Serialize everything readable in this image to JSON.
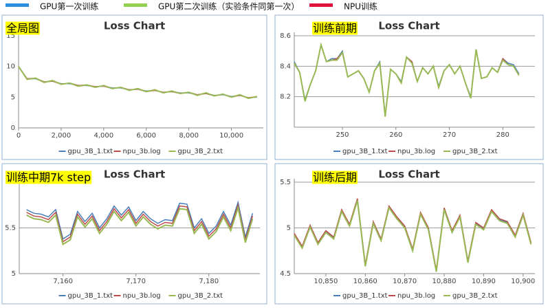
{
  "legend": [
    {
      "name": "GPU第一次训练",
      "color": "#2a8ee0"
    },
    {
      "name": "GPU第二次训练（实验条件同第一次）",
      "color": "#92d050"
    },
    {
      "name": "NPU训练",
      "color": "#e0103c"
    }
  ],
  "chart_data": [
    {
      "type": "line",
      "title": "Loss Chart",
      "label": "全局图",
      "grid": false,
      "x": [
        0,
        400,
        800,
        1200,
        1600,
        2000,
        2400,
        2800,
        3200,
        3600,
        4000,
        4400,
        4800,
        5200,
        5600,
        6000,
        6400,
        6800,
        7200,
        7600,
        8000,
        8400,
        8800,
        9200,
        9600,
        10000,
        10400,
        10800,
        11200
      ],
      "xlim": [
        0,
        11500
      ],
      "ylim": [
        0,
        15
      ],
      "xticks": [
        0,
        {
          "value": 2000,
          "label": "2,000"
        },
        {
          "value": 4000,
          "label": "4,000"
        },
        {
          "value": 6000,
          "label": "6,000"
        },
        {
          "value": 8000,
          "label": "8,000"
        },
        {
          "value": 10000,
          "label": "10,000"
        }
      ],
      "yticks": [
        0,
        5,
        10,
        15
      ],
      "series": [
        {
          "name": "gpu_3B_1.txt",
          "color": "#4a7ebb",
          "values": [
            10.0,
            8.0,
            8.0,
            7.5,
            7.6,
            7.2,
            7.2,
            6.9,
            6.9,
            6.7,
            6.8,
            6.5,
            6.5,
            6.2,
            6.3,
            6.0,
            6.1,
            5.8,
            5.9,
            5.7,
            5.7,
            5.4,
            5.6,
            5.3,
            5.4,
            5.1,
            5.3,
            4.9,
            5.0
          ]
        },
        {
          "name": "npu_3b.log",
          "color": "#be4b48",
          "values": [
            10.0,
            8.0,
            8.1,
            7.5,
            7.6,
            7.1,
            7.3,
            6.9,
            7.0,
            6.7,
            6.8,
            6.4,
            6.6,
            6.2,
            6.3,
            5.9,
            6.1,
            5.8,
            5.9,
            5.6,
            5.8,
            5.4,
            5.6,
            5.2,
            5.5,
            5.0,
            5.3,
            4.9,
            5.1
          ]
        },
        {
          "name": "gpu_3B_2.txt",
          "color": "#98b954",
          "values": [
            10.0,
            7.9,
            8.1,
            7.4,
            7.7,
            7.1,
            7.3,
            6.8,
            7.0,
            6.6,
            6.9,
            6.4,
            6.6,
            6.1,
            6.4,
            5.9,
            6.2,
            5.7,
            6.0,
            5.6,
            5.8,
            5.3,
            5.7,
            5.2,
            5.5,
            5.0,
            5.4,
            4.8,
            5.1
          ]
        }
      ]
    },
    {
      "type": "line",
      "title": "Loss Chart",
      "label": "训练前期",
      "grid": true,
      "x": [
        241,
        242,
        243,
        244,
        245,
        246,
        247,
        248,
        249,
        250,
        251,
        252,
        253,
        254,
        255,
        256,
        257,
        258,
        259,
        260,
        261,
        262,
        263,
        264,
        265,
        266,
        267,
        268,
        269,
        270,
        271,
        272,
        273,
        274,
        275,
        276,
        277,
        278,
        279,
        280,
        281,
        282,
        283
      ],
      "xlim": [
        241,
        286
      ],
      "ylim": [
        8.0,
        8.6
      ],
      "xticks": [
        250,
        260,
        270,
        280
      ],
      "yticks": [
        8.2,
        8.4,
        8.6
      ],
      "series": [
        {
          "name": "gpu_3B_1.txt",
          "color": "#4a7ebb",
          "values": [
            8.43,
            8.36,
            8.18,
            8.28,
            8.37,
            8.54,
            8.43,
            8.45,
            8.45,
            8.5,
            8.33,
            8.35,
            8.37,
            8.32,
            8.23,
            8.37,
            8.43,
            8.08,
            8.38,
            8.35,
            8.3,
            8.46,
            8.43,
            8.3,
            8.39,
            8.35,
            8.4,
            8.27,
            8.37,
            8.41,
            8.35,
            8.4,
            8.29,
            8.2,
            8.51,
            8.32,
            8.33,
            8.39,
            8.36,
            8.45,
            8.42,
            8.41,
            8.35
          ]
        },
        {
          "name": "npu_3b.log",
          "color": "#be4b48",
          "values": [
            8.42,
            8.36,
            8.17,
            8.28,
            8.37,
            8.54,
            8.43,
            8.44,
            8.45,
            8.49,
            8.33,
            8.35,
            8.37,
            8.32,
            8.23,
            8.37,
            8.42,
            8.07,
            8.38,
            8.35,
            8.29,
            8.46,
            8.43,
            8.3,
            8.39,
            8.35,
            8.4,
            8.26,
            8.37,
            8.41,
            8.35,
            8.4,
            8.29,
            8.19,
            8.51,
            8.32,
            8.33,
            8.39,
            8.36,
            8.45,
            8.41,
            8.4,
            8.34
          ]
        },
        {
          "name": "gpu_3B_2.txt",
          "color": "#98b954",
          "values": [
            8.42,
            8.36,
            8.17,
            8.28,
            8.37,
            8.54,
            8.43,
            8.44,
            8.44,
            8.49,
            8.33,
            8.35,
            8.37,
            8.32,
            8.23,
            8.37,
            8.42,
            8.07,
            8.38,
            8.35,
            8.29,
            8.46,
            8.42,
            8.3,
            8.39,
            8.35,
            8.4,
            8.26,
            8.37,
            8.41,
            8.35,
            8.4,
            8.29,
            8.19,
            8.51,
            8.32,
            8.33,
            8.39,
            8.36,
            8.44,
            8.41,
            8.4,
            8.34
          ]
        }
      ]
    },
    {
      "type": "line",
      "title": "Loss Chart",
      "label": "训练中期7k step",
      "grid": true,
      "x": [
        7155,
        7156,
        7157,
        7158,
        7159,
        7160,
        7161,
        7162,
        7163,
        7164,
        7165,
        7166,
        7167,
        7168,
        7169,
        7170,
        7171,
        7172,
        7173,
        7174,
        7175,
        7176,
        7177,
        7178,
        7179,
        7180,
        7181,
        7182,
        7183,
        7184,
        7185,
        7186
      ],
      "xlim": [
        7154,
        7187
      ],
      "ylim": [
        5,
        6
      ],
      "xticks": [
        {
          "value": 7160,
          "label": "7,160"
        },
        {
          "value": 7170,
          "label": "7,170"
        },
        {
          "value": 7180,
          "label": "7,180"
        }
      ],
      "yticks": [
        5,
        5.5
      ],
      "series": [
        {
          "name": "gpu_3B_1.txt",
          "color": "#4a7ebb",
          "values": [
            5.7,
            5.66,
            5.65,
            5.62,
            5.7,
            5.38,
            5.43,
            5.68,
            5.57,
            5.66,
            5.5,
            5.6,
            5.74,
            5.64,
            5.73,
            5.58,
            5.68,
            5.6,
            5.55,
            5.59,
            5.58,
            5.77,
            5.76,
            5.5,
            5.6,
            5.44,
            5.52,
            5.68,
            5.53,
            5.78,
            5.4,
            5.66
          ]
        },
        {
          "name": "npu_3b.log",
          "color": "#be4b48",
          "values": [
            5.67,
            5.63,
            5.62,
            5.59,
            5.67,
            5.35,
            5.4,
            5.65,
            5.54,
            5.63,
            5.47,
            5.57,
            5.71,
            5.61,
            5.7,
            5.55,
            5.65,
            5.57,
            5.52,
            5.56,
            5.55,
            5.74,
            5.73,
            5.47,
            5.57,
            5.41,
            5.49,
            5.65,
            5.5,
            5.75,
            5.37,
            5.63
          ]
        },
        {
          "name": "gpu_3B_2.txt",
          "color": "#98b954",
          "values": [
            5.64,
            5.6,
            5.59,
            5.56,
            5.64,
            5.32,
            5.37,
            5.62,
            5.51,
            5.6,
            5.44,
            5.54,
            5.68,
            5.58,
            5.67,
            5.52,
            5.62,
            5.54,
            5.49,
            5.53,
            5.52,
            5.71,
            5.7,
            5.44,
            5.54,
            5.38,
            5.46,
            5.62,
            5.47,
            5.72,
            5.34,
            5.6
          ]
        }
      ]
    },
    {
      "type": "line",
      "title": "Loss Chart",
      "label": "训练后期",
      "grid": true,
      "x": [
        10842,
        10844,
        10846,
        10848,
        10850,
        10852,
        10854,
        10856,
        10858,
        10860,
        10862,
        10864,
        10866,
        10868,
        10870,
        10872,
        10874,
        10876,
        10878,
        10880,
        10882,
        10884,
        10886,
        10888,
        10890,
        10892,
        10894,
        10896,
        10898,
        10900,
        10902
      ],
      "xlim": [
        10842,
        10903
      ],
      "ylim": [
        4.5,
        5.5
      ],
      "xticks": [
        {
          "value": 10850,
          "label": "10,850"
        },
        {
          "value": 10860,
          "label": "10,860"
        },
        {
          "value": 10870,
          "label": "10,870"
        },
        {
          "value": 10880,
          "label": "10,880"
        },
        {
          "value": 10890,
          "label": "10,890"
        },
        {
          "value": 10900,
          "label": "10,900"
        }
      ],
      "yticks": [
        4.5,
        5,
        5.5
      ],
      "series": [
        {
          "name": "gpu_3B_1.txt",
          "color": "#4a7ebb",
          "values": [
            4.93,
            4.79,
            5.02,
            4.83,
            4.96,
            4.89,
            5.19,
            5.03,
            5.31,
            4.59,
            5.06,
            4.87,
            5.23,
            5.11,
            5.01,
            4.76,
            5.16,
            4.99,
            4.53,
            5.21,
            4.96,
            5.13,
            4.63,
            5.05,
            4.99,
            5.19,
            5.09,
            5.06,
            4.91,
            5.15,
            4.83
          ]
        },
        {
          "name": "npu_3b.log",
          "color": "#be4b48",
          "values": [
            4.94,
            4.8,
            5.03,
            4.84,
            4.97,
            4.9,
            5.2,
            5.04,
            5.32,
            4.6,
            5.07,
            4.88,
            5.24,
            5.12,
            5.02,
            4.77,
            5.17,
            5.0,
            4.54,
            5.22,
            4.97,
            5.14,
            4.64,
            5.06,
            5.0,
            5.2,
            5.1,
            5.07,
            4.92,
            5.16,
            4.84
          ]
        },
        {
          "name": "gpu_3B_2.txt",
          "color": "#98b954",
          "values": [
            4.92,
            4.78,
            5.01,
            4.82,
            4.95,
            4.88,
            5.18,
            5.02,
            5.3,
            4.58,
            5.05,
            4.86,
            5.22,
            5.1,
            5.0,
            4.75,
            5.15,
            4.98,
            4.52,
            5.2,
            4.95,
            5.12,
            4.62,
            5.04,
            4.98,
            5.18,
            5.08,
            5.05,
            4.9,
            5.14,
            4.82
          ]
        }
      ]
    }
  ]
}
